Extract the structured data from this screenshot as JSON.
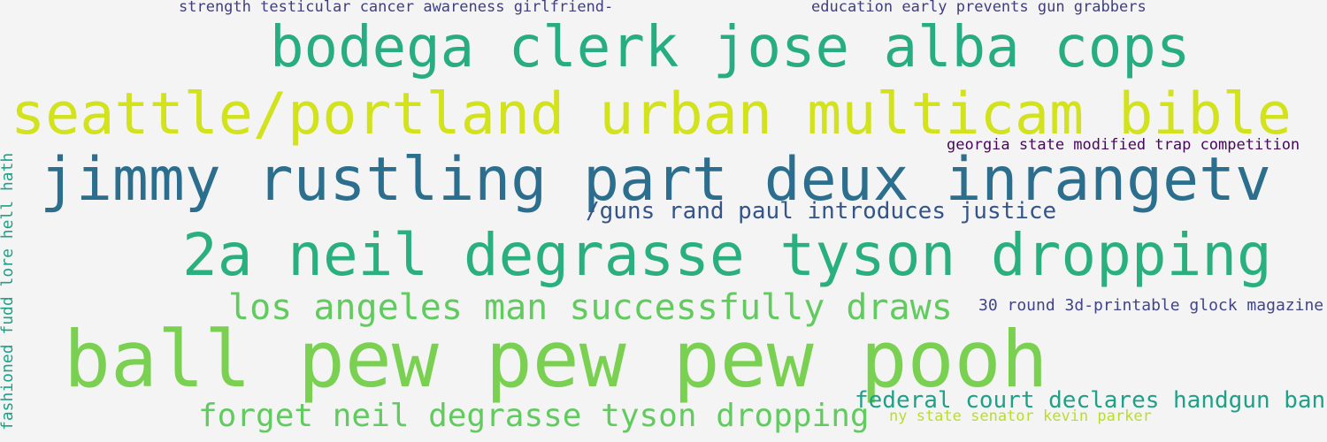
{
  "words": [
    {
      "text": "strength testicular cancer awareness girlfriend-",
      "color": "#3f3e7e"
    },
    {
      "text": "education early prevents gun grabbers",
      "color": "#3f3e7e"
    },
    {
      "text": "bodega clerk jose alba cops",
      "color": "#27ad81"
    },
    {
      "text": "seattle/portland urban multicam bible",
      "color": "#d2e21b"
    },
    {
      "text": "georgia state modified trap competition",
      "color": "#45085a"
    },
    {
      "text": "jimmy rustling part deux inrangetv",
      "color": "#2c6e8e"
    },
    {
      "text": "/guns rand paul introduces justice",
      "color": "#34548a"
    },
    {
      "text": "2a neil degrasse tyson dropping",
      "color": "#2ab07f"
    },
    {
      "text": "los angeles man successfully draws",
      "color": "#62cb5f"
    },
    {
      "text": "30 round 3d-printable glock magazine",
      "color": "#414487"
    },
    {
      "text": "ball pew pew pew pooh",
      "color": "#7ad151"
    },
    {
      "text": "federal court declares handgun ban",
      "color": "#1fa187"
    },
    {
      "text": "forget neil degrasse tyson dropping",
      "color": "#62cb5f"
    },
    {
      "text": "ny state senator kevin parker",
      "color": "#b8de29"
    },
    {
      "text": "fashioned fudd lore hell hath",
      "color": "#1fa187"
    }
  ]
}
